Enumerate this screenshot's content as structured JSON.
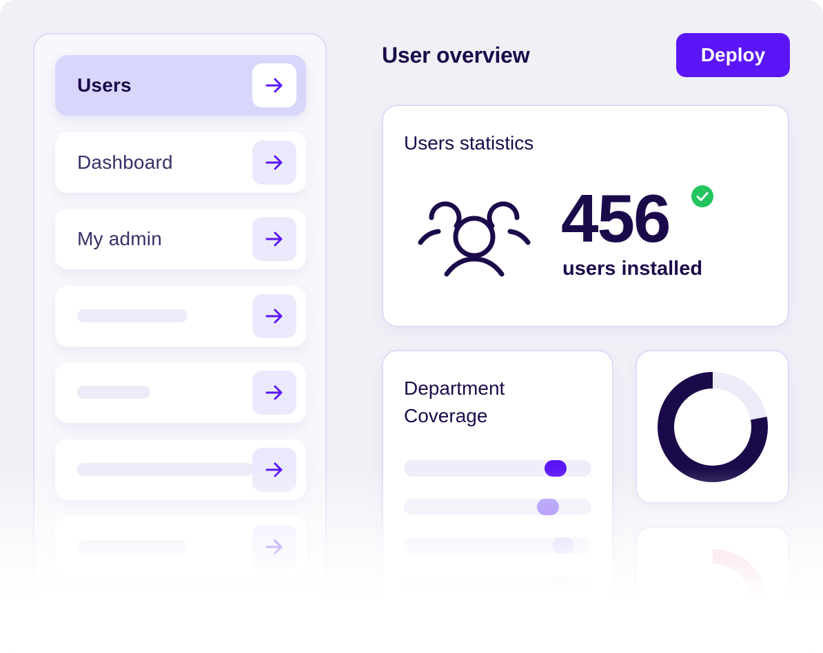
{
  "header": {
    "title": "User overview",
    "deploy_label": "Deploy"
  },
  "sidebar": {
    "items": [
      {
        "label": "Users",
        "active": true,
        "icon": "arrow-right-icon"
      },
      {
        "label": "Dashboard",
        "active": false,
        "icon": "arrow-right-icon"
      },
      {
        "label": "My admin",
        "active": false,
        "icon": "arrow-right-icon"
      },
      {
        "label": "",
        "placeholder": true,
        "icon": "arrow-right-icon"
      },
      {
        "label": "",
        "placeholder": true,
        "icon": "arrow-right-icon"
      },
      {
        "label": "",
        "placeholder": true,
        "icon": "arrow-right-icon"
      },
      {
        "label": "",
        "placeholder": true,
        "icon": "arrow-right-icon"
      }
    ]
  },
  "stats": {
    "title": "Users statistics",
    "value": "456",
    "caption": "users installed",
    "icon": "users-group-icon",
    "status_icon": "check-circle-icon"
  },
  "coverage": {
    "title": "Department Coverage",
    "levels": [
      0.81,
      0.77,
      0.85,
      0.83
    ]
  },
  "donut": {
    "fraction": 0.78,
    "faded_fraction": 0.38
  },
  "colors": {
    "accent": "#5b16f7",
    "dark": "#1b0a4a",
    "success": "#22c55e",
    "track": "#eeedf9",
    "faded_red": "#f2b6c0"
  }
}
